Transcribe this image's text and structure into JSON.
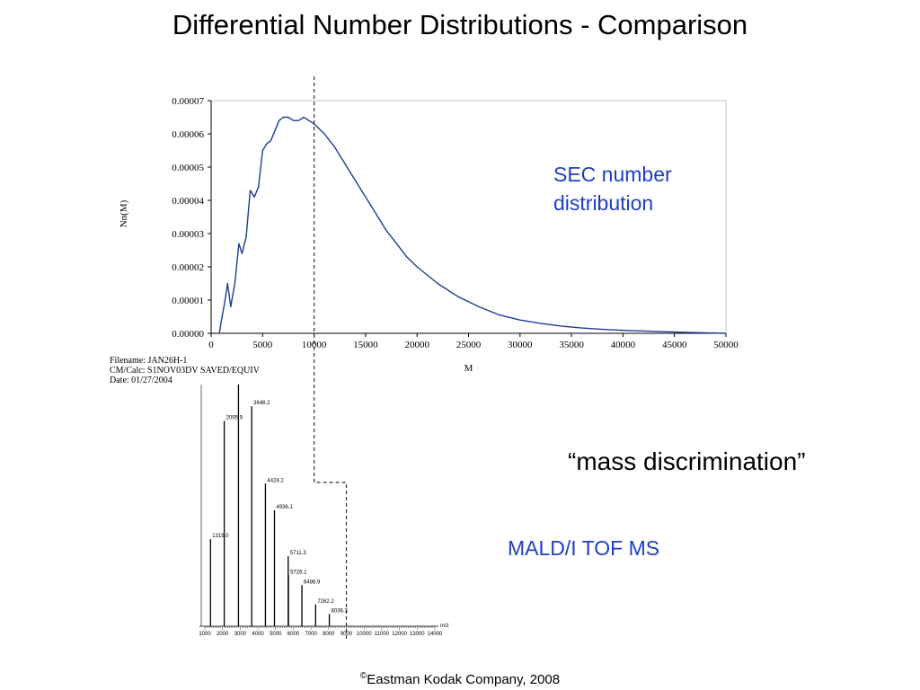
{
  "slide": {
    "title": "Differential Number Distributions - Comparison",
    "annotation_sec": [
      "SEC number",
      "distribution"
    ],
    "annotation_mass": "“mass discrimination”",
    "annotation_maldi": "MALD/I TOF MS",
    "footer_symbol": "©",
    "footer_text": "Eastman Kodak Company, 2008",
    "metadata": [
      "Filename: JAN26H-1",
      "CM/Calc: S1NOV03DV SAVED/EQUIV",
      "Date: 01/27/2004"
    ]
  },
  "colors": {
    "sec_curve": "#1f3d8f",
    "annotation_blue": "#1f3fbf",
    "axis": "#000000"
  },
  "chart_data": [
    {
      "type": "line",
      "title": "",
      "xlabel": "M",
      "ylabel": "Nn(M)",
      "xlim": [
        0,
        50000
      ],
      "ylim": [
        0,
        7e-05
      ],
      "x_ticks": [
        0,
        5000,
        10000,
        15000,
        20000,
        25000,
        30000,
        35000,
        40000,
        45000,
        50000
      ],
      "y_ticks": [
        "0.00000",
        "0.00001",
        "0.00002",
        "0.00003",
        "0.00004",
        "0.00005",
        "0.00006",
        "0.00007"
      ],
      "marker_x": 10000,
      "series": [
        {
          "x": [
            800,
            1000,
            1300,
            1600,
            1900,
            2300,
            2700,
            3000,
            3400,
            3800,
            4200,
            4600,
            5000,
            5400,
            5800,
            6200,
            6600,
            7000,
            7500,
            8000,
            8500,
            9000,
            9500,
            10000,
            11000,
            12000,
            13000,
            14000,
            15000,
            16000,
            17000,
            18000,
            19000,
            20000,
            22000,
            24000,
            26000,
            28000,
            30000,
            32000,
            34000,
            36000,
            38000,
            40000,
            43000,
            46000,
            50000
          ],
          "y": [
            0.0,
            4e-06,
            9e-06,
            1.5e-05,
            8e-06,
            1.5e-05,
            2.7e-05,
            2.4e-05,
            2.9e-05,
            4.3e-05,
            4.1e-05,
            4.4e-05,
            5.5e-05,
            5.7e-05,
            5.8e-05,
            6.1e-05,
            6.4e-05,
            6.5e-05,
            6.5e-05,
            6.4e-05,
            6.4e-05,
            6.5e-05,
            6.4e-05,
            6.3e-05,
            6e-05,
            5.6e-05,
            5.1e-05,
            4.6e-05,
            4.1e-05,
            3.6e-05,
            3.1e-05,
            2.7e-05,
            2.3e-05,
            2e-05,
            1.5e-05,
            1.1e-05,
            8e-06,
            5.5e-06,
            4e-06,
            3e-06,
            2.2e-06,
            1.6e-06,
            1.2e-06,
            9e-07,
            6e-07,
            3e-07,
            0.0
          ]
        }
      ]
    },
    {
      "type": "bar",
      "title": "",
      "xlim": [
        1000,
        14000
      ],
      "x_ticks": [
        1000,
        2000,
        3000,
        4000,
        5000,
        6000,
        7000,
        8000,
        9000,
        10000,
        11000,
        12000,
        13000,
        14000
      ],
      "x_unit_label": "m/z",
      "marker_x": 9000,
      "peaks": [
        {
          "mz": 1319.0,
          "rel": 0.36,
          "label": "1319.0"
        },
        {
          "mz": 2095.9,
          "rel": 0.85,
          "label": "2095.9"
        },
        {
          "mz": 2900.0,
          "rel": 1.0,
          "label": ""
        },
        {
          "mz": 3648.2,
          "rel": 0.91,
          "label": "3648.2"
        },
        {
          "mz": 4424.2,
          "rel": 0.59,
          "label": "4424.2"
        },
        {
          "mz": 4936.1,
          "rel": 0.48,
          "label": "4936.1"
        },
        {
          "mz": 5711.3,
          "rel": 0.29,
          "label": "5711.3"
        },
        {
          "mz": 5726.1,
          "rel": 0.21,
          "label": "5726.1"
        },
        {
          "mz": 6486.9,
          "rel": 0.17,
          "label": "6486.9"
        },
        {
          "mz": 7262.2,
          "rel": 0.09,
          "label": "7262.2"
        },
        {
          "mz": 8036.3,
          "rel": 0.05,
          "label": "8036.3"
        }
      ]
    }
  ]
}
